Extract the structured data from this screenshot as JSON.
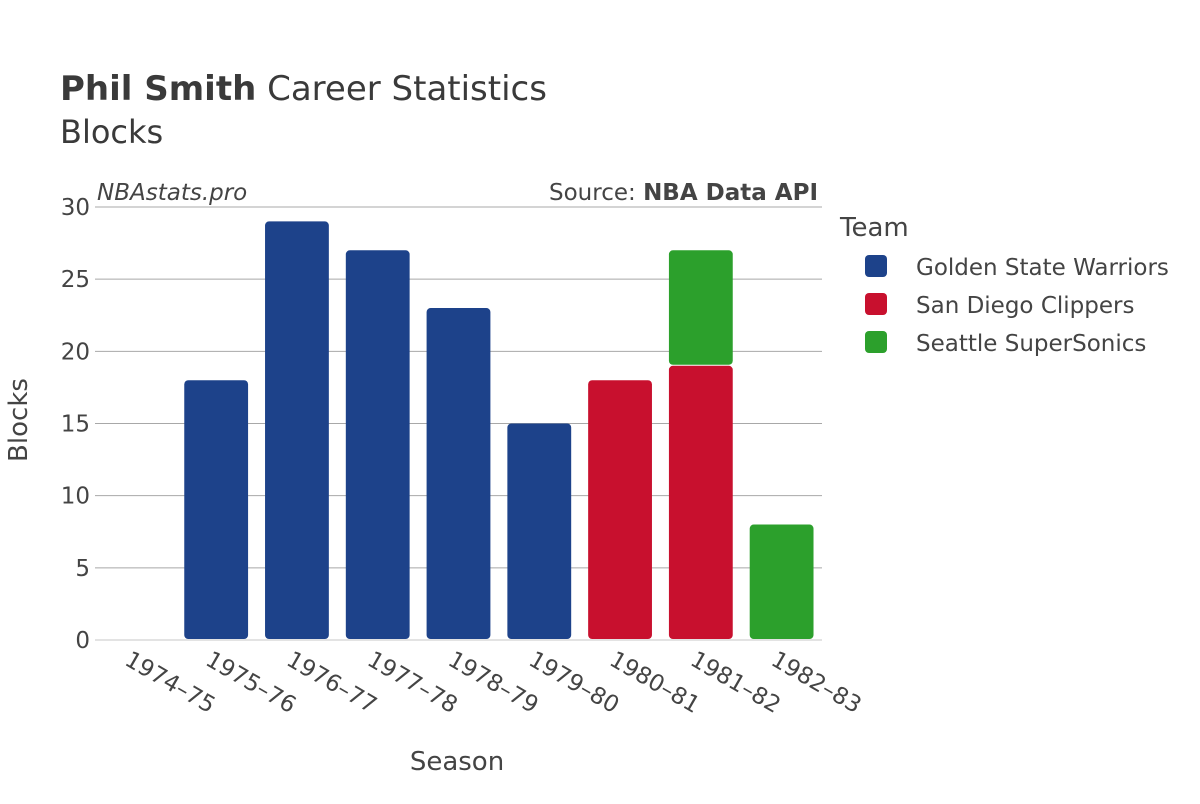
{
  "title": {
    "name": "Phil Smith",
    "rest": " Career Statistics",
    "subtitle": "Blocks"
  },
  "watermark": "NBAstats.pro",
  "source": {
    "prefix": "Source: ",
    "name": "NBA Data API"
  },
  "legend_title": "Team",
  "colors": {
    "Golden State Warriors": "#1d428a",
    "San Diego Clippers": "#c8102e",
    "Seattle SuperSonics": "#2ca02c"
  },
  "chart_data": {
    "type": "bar",
    "stacked": true,
    "xlabel": "Season",
    "ylabel": "Blocks",
    "ylim": [
      0,
      30
    ],
    "yticks": [
      0,
      5,
      10,
      15,
      20,
      25,
      30
    ],
    "grid": true,
    "legend_position": "right",
    "categories": [
      "1974–75",
      "1975–76",
      "1976–77",
      "1977–78",
      "1978–79",
      "1979–80",
      "1980–81",
      "1981–82",
      "1982–83"
    ],
    "series": [
      {
        "name": "Golden State Warriors",
        "values": [
          0,
          18,
          29,
          27,
          23,
          15,
          0,
          0,
          0
        ]
      },
      {
        "name": "San Diego Clippers",
        "values": [
          0,
          0,
          0,
          0,
          0,
          0,
          18,
          19,
          0
        ]
      },
      {
        "name": "Seattle SuperSonics",
        "values": [
          0,
          0,
          0,
          0,
          0,
          0,
          0,
          8,
          8
        ]
      }
    ]
  }
}
